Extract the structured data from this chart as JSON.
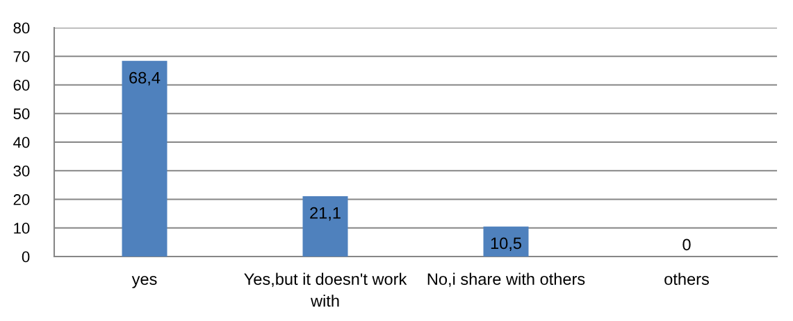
{
  "chart_data": {
    "type": "bar",
    "categories": [
      "yes",
      "Yes,but it doesn't work\nwith",
      "No,i share with others",
      "others"
    ],
    "values": [
      68.4,
      21.1,
      10.5,
      0
    ],
    "color": "#4f81bd",
    "value_labels": [
      "68,4",
      "21,1",
      "10,5",
      "0"
    ],
    "ylim": [
      0,
      80
    ],
    "yticks": [
      0,
      10,
      20,
      30,
      40,
      50,
      60,
      70,
      80
    ],
    "grid": "y"
  }
}
